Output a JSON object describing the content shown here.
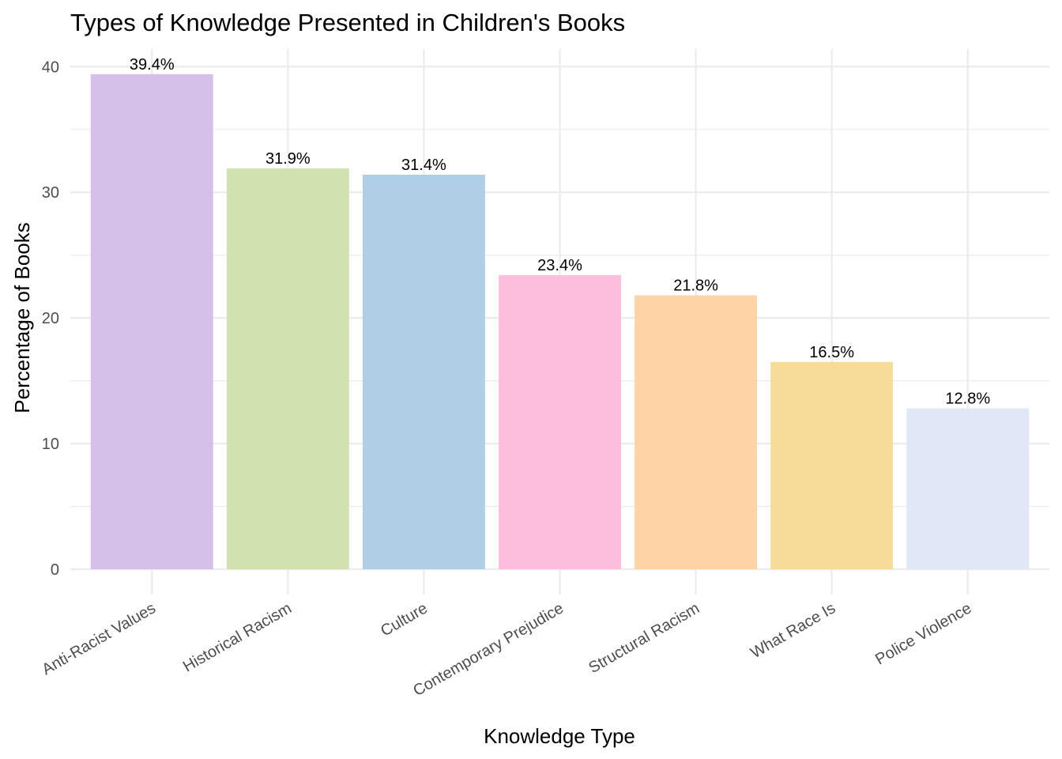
{
  "chart_data": {
    "type": "bar",
    "title": "Types of Knowledge Presented in Children's Books",
    "xlabel": "Knowledge Type",
    "ylabel": "Percentage of Books",
    "categories": [
      "Anti-Racist Values",
      "Historical Racism",
      "Culture",
      "Contemporary Prejudice",
      "Structural Racism",
      "What Race Is",
      "Police Violence"
    ],
    "values": [
      39.4,
      31.9,
      31.4,
      23.4,
      21.8,
      16.5,
      12.8
    ],
    "data_labels": [
      "39.4%",
      "31.9%",
      "31.4%",
      "23.4%",
      "21.8%",
      "16.5%",
      "12.8%"
    ],
    "colors": [
      "#d4c0e8",
      "#cfe2b0",
      "#b0cfe6",
      "#fdbddc",
      "#fed3a6",
      "#f6dc98",
      "#e0e7f6"
    ],
    "ylim": [
      0,
      41.4
    ],
    "yticks": [
      0,
      10,
      20,
      30,
      40
    ],
    "ytick_labels": [
      "0",
      "10",
      "20",
      "30",
      "40"
    ],
    "grid": true,
    "legend": "none"
  }
}
